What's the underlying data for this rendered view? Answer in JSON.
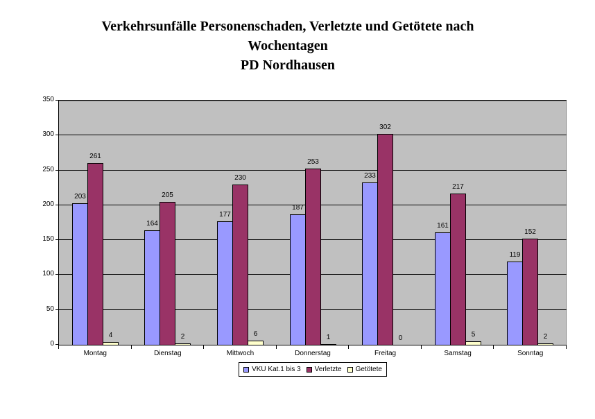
{
  "title": {
    "lines": [
      "Verkehrsunfälle Personenschaden, Verletzte und Getötete nach",
      "Wochentagen",
      "PD Nordhausen"
    ]
  },
  "chart_data": {
    "type": "bar",
    "title": "Verkehrsunfälle Personenschaden, Verletzte und Getötete nach Wochentagen PD Nordhausen",
    "categories": [
      "Montag",
      "Dienstag",
      "Mittwoch",
      "Donnerstag",
      "Freitag",
      "Samstag",
      "Sonntag"
    ],
    "series": [
      {
        "name": "VKU Kat.1 bis 3",
        "color": "#9999FF",
        "values": [
          203,
          164,
          177,
          187,
          233,
          161,
          119
        ]
      },
      {
        "name": "Verletzte",
        "color": "#993366",
        "values": [
          261,
          205,
          230,
          253,
          302,
          217,
          152
        ]
      },
      {
        "name": "Getötete",
        "color": "#FFFFCC",
        "values": [
          4,
          2,
          6,
          1,
          0,
          5,
          2
        ]
      }
    ],
    "xlabel": "",
    "ylabel": "",
    "ylim": [
      0,
      350
    ],
    "yticks": [
      0,
      50,
      100,
      150,
      200,
      250,
      300,
      350
    ],
    "grid": true,
    "data_labels": true,
    "legend_position": "bottom",
    "colors": {
      "plot_background": "#C0C0C0",
      "gridline": "#000000",
      "axis": "#000000",
      "bar_border": "#000000",
      "text": "#000000"
    }
  }
}
